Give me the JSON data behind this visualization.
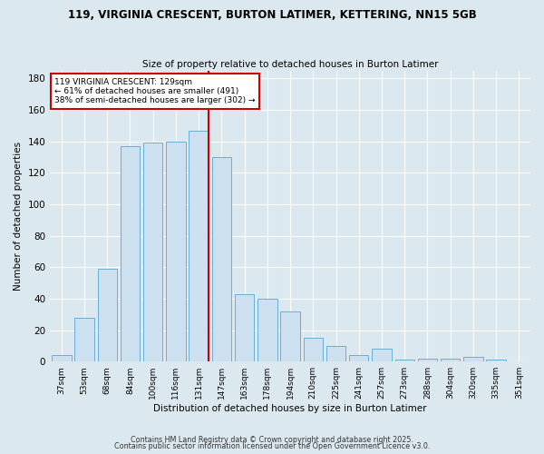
{
  "title1": "119, VIRGINIA CRESCENT, BURTON LATIMER, KETTERING, NN15 5GB",
  "title2": "Size of property relative to detached houses in Burton Latimer",
  "xlabel": "Distribution of detached houses by size in Burton Latimer",
  "ylabel": "Number of detached properties",
  "categories": [
    "37sqm",
    "53sqm",
    "68sqm",
    "84sqm",
    "100sqm",
    "116sqm",
    "131sqm",
    "147sqm",
    "163sqm",
    "178sqm",
    "194sqm",
    "210sqm",
    "225sqm",
    "241sqm",
    "257sqm",
    "273sqm",
    "288sqm",
    "304sqm",
    "320sqm",
    "335sqm",
    "351sqm"
  ],
  "values": [
    4,
    28,
    59,
    137,
    139,
    140,
    147,
    130,
    43,
    40,
    32,
    15,
    10,
    4,
    8,
    1,
    2,
    2,
    3,
    1,
    0
  ],
  "bar_color": "#cce0f0",
  "bar_edge_color": "#6aafd6",
  "vline_color": "#cc0000",
  "annotation_text": "119 VIRGINIA CRESCENT: 129sqm\n← 61% of detached houses are smaller (491)\n38% of semi-detached houses are larger (302) →",
  "annotation_box_color": "#ffffff",
  "annotation_box_edge": "#cc0000",
  "ylim": [
    0,
    185
  ],
  "yticks": [
    0,
    20,
    40,
    60,
    80,
    100,
    120,
    140,
    160,
    180
  ],
  "fig_bg_color": "#dce8f0",
  "plot_bg_color": "#dce8f0",
  "grid_color": "#ffffff",
  "footer1": "Contains HM Land Registry data © Crown copyright and database right 2025.",
  "footer2": "Contains public sector information licensed under the Open Government Licence v3.0."
}
